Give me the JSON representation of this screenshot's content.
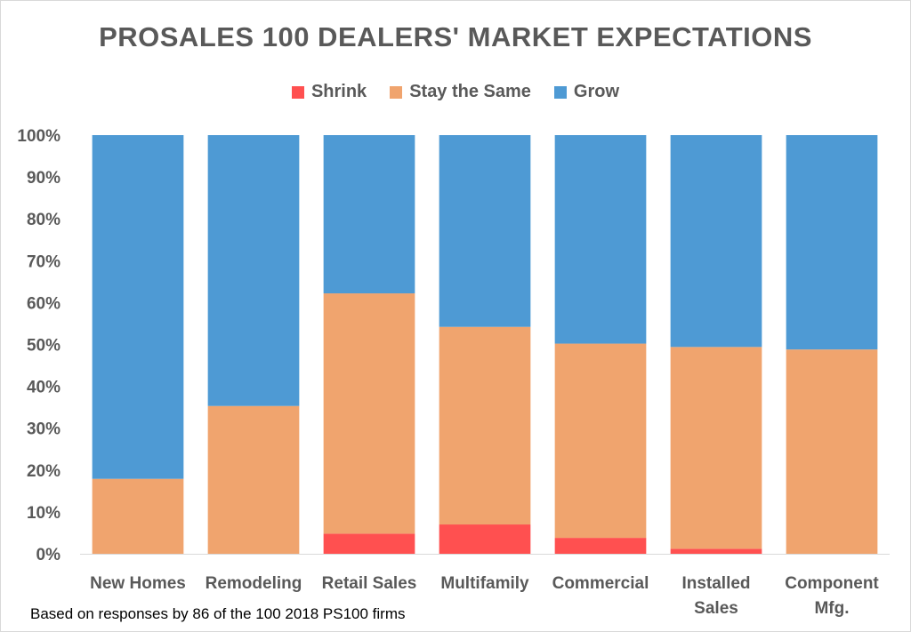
{
  "chart_data": {
    "type": "bar",
    "stacked": true,
    "title": "PROSALES 100 DEALERS' MARKET EXPECTATIONS",
    "categories": [
      [
        "New Homes"
      ],
      [
        "Remodeling"
      ],
      [
        "Retail Sales"
      ],
      [
        "Multifamily"
      ],
      [
        "Commercial"
      ],
      [
        "Installed",
        "Sales"
      ],
      [
        "Component",
        "Mfg."
      ]
    ],
    "series": [
      {
        "name": "Shrink",
        "color": "#ff5050",
        "values": [
          0,
          0,
          4.8,
          7.0,
          3.8,
          1.2,
          0
        ]
      },
      {
        "name": "Stay the Same",
        "color": "#f0a46e",
        "values": [
          17.9,
          35.3,
          57.4,
          47.2,
          46.4,
          48.2,
          48.8
        ]
      },
      {
        "name": "Grow",
        "color": "#4e9ad4",
        "values": [
          82.1,
          64.7,
          37.8,
          45.8,
          49.8,
          50.6,
          51.2
        ]
      }
    ],
    "ylim": [
      0,
      100
    ],
    "yticks": [
      "0%",
      "10%",
      "20%",
      "30%",
      "40%",
      "50%",
      "60%",
      "70%",
      "80%",
      "90%",
      "100%"
    ],
    "legend_position": "top",
    "grid": false
  },
  "footnote": "Based on responses by 86 of the 100 2018 PS100 firms"
}
